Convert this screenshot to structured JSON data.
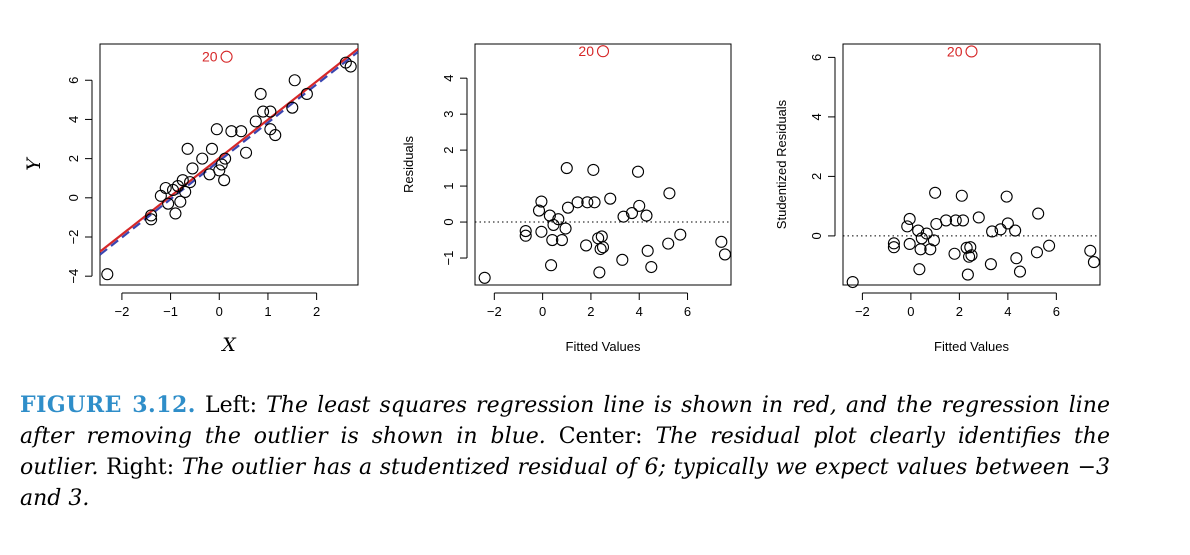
{
  "chart_data": [
    {
      "type": "scatter",
      "xlabel": "X",
      "ylabel": "Y",
      "xlim": [
        -2.45,
        2.85
      ],
      "ylim": [
        -4.45,
        7.85
      ],
      "xticks": [
        -2,
        -1,
        0,
        1,
        2
      ],
      "yticks": [
        -4,
        -2,
        0,
        2,
        4,
        6
      ],
      "xtick_labels": [
        "−2",
        "−1",
        "0",
        "1",
        "2"
      ],
      "ytick_labels": [
        "−4",
        "−2",
        "0",
        "2",
        "4",
        "6"
      ],
      "annotation": {
        "label": "20",
        "x": 0.15,
        "y": 7.2,
        "color": "#d62728"
      },
      "points": [
        [
          -2.3,
          -3.9
        ],
        [
          -1.4,
          -1.1
        ],
        [
          -1.4,
          -0.9
        ],
        [
          -1.2,
          0.1
        ],
        [
          -1.1,
          0.5
        ],
        [
          -1.05,
          -0.3
        ],
        [
          -0.95,
          0.4
        ],
        [
          -0.9,
          -0.8
        ],
        [
          -0.85,
          0.6
        ],
        [
          -0.8,
          -0.2
        ],
        [
          -0.75,
          0.9
        ],
        [
          -0.7,
          0.3
        ],
        [
          -0.65,
          2.5
        ],
        [
          -0.6,
          0.8
        ],
        [
          -0.55,
          1.5
        ],
        [
          -0.35,
          2.0
        ],
        [
          -0.2,
          1.2
        ],
        [
          -0.15,
          2.5
        ],
        [
          -0.05,
          3.5
        ],
        [
          0.0,
          1.4
        ],
        [
          0.05,
          1.7
        ],
        [
          0.1,
          0.9
        ],
        [
          0.12,
          2.0
        ],
        [
          0.25,
          3.4
        ],
        [
          0.45,
          3.4
        ],
        [
          0.55,
          2.3
        ],
        [
          0.75,
          3.9
        ],
        [
          0.85,
          5.3
        ],
        [
          0.9,
          4.4
        ],
        [
          1.05,
          4.4
        ],
        [
          1.05,
          3.5
        ],
        [
          1.15,
          3.2
        ],
        [
          1.5,
          4.6
        ],
        [
          1.55,
          6.0
        ],
        [
          1.8,
          5.3
        ],
        [
          2.6,
          6.9
        ],
        [
          2.7,
          6.7
        ]
      ],
      "lines": [
        {
          "name": "least squares fit",
          "color": "#d62728",
          "style": "solid",
          "x": [
            -2.45,
            2.85
          ],
          "y": [
            -2.75,
            7.6
          ]
        },
        {
          "name": "fit without outlier",
          "color": "#3a45b0",
          "style": "dashed",
          "x": [
            -2.45,
            2.85
          ],
          "y": [
            -2.9,
            7.45
          ]
        }
      ]
    },
    {
      "type": "scatter",
      "xlabel": "Fitted Values",
      "ylabel": "Residuals",
      "xlim": [
        -2.8,
        7.8
      ],
      "ylim": [
        -1.75,
        4.95
      ],
      "xticks": [
        -2,
        0,
        2,
        4,
        6
      ],
      "yticks": [
        -1,
        0,
        1,
        2,
        3,
        4
      ],
      "xtick_labels": [
        "−2",
        "0",
        "2",
        "4",
        "6"
      ],
      "ytick_labels": [
        "−1",
        "0",
        "1",
        "2",
        "3",
        "4"
      ],
      "hline": 0,
      "annotation": {
        "label": "20",
        "x": 2.5,
        "y": 4.75,
        "color": "#d62728"
      },
      "points": [
        [
          -2.4,
          -1.55
        ],
        [
          -0.7,
          -0.25
        ],
        [
          -0.7,
          -0.38
        ],
        [
          -0.15,
          0.32
        ],
        [
          -0.05,
          0.57
        ],
        [
          -0.05,
          -0.27
        ],
        [
          0.3,
          0.18
        ],
        [
          0.35,
          -1.2
        ],
        [
          0.4,
          -0.5
        ],
        [
          0.45,
          -0.08
        ],
        [
          0.65,
          0.08
        ],
        [
          0.8,
          -0.5
        ],
        [
          0.95,
          -0.18
        ],
        [
          1.0,
          1.5
        ],
        [
          1.05,
          0.4
        ],
        [
          1.45,
          0.55
        ],
        [
          1.8,
          -0.65
        ],
        [
          1.85,
          0.55
        ],
        [
          2.1,
          1.45
        ],
        [
          2.15,
          0.55
        ],
        [
          2.3,
          -0.45
        ],
        [
          2.35,
          -1.4
        ],
        [
          2.4,
          -0.75
        ],
        [
          2.45,
          -0.4
        ],
        [
          2.5,
          -0.7
        ],
        [
          2.8,
          0.65
        ],
        [
          3.3,
          -1.05
        ],
        [
          3.35,
          0.15
        ],
        [
          3.7,
          0.25
        ],
        [
          3.95,
          1.4
        ],
        [
          4.0,
          0.45
        ],
        [
          4.3,
          0.18
        ],
        [
          4.35,
          -0.8
        ],
        [
          4.5,
          -1.25
        ],
        [
          5.2,
          -0.6
        ],
        [
          5.25,
          0.8
        ],
        [
          5.7,
          -0.35
        ],
        [
          7.4,
          -0.55
        ],
        [
          7.55,
          -0.9
        ]
      ]
    },
    {
      "type": "scatter",
      "xlabel": "Fitted Values",
      "ylabel": "Studentized Residuals",
      "xlim": [
        -2.8,
        7.8
      ],
      "ylim": [
        -1.65,
        6.45
      ],
      "xticks": [
        -2,
        0,
        2,
        4,
        6
      ],
      "yticks": [
        0,
        2,
        4,
        6
      ],
      "xtick_labels": [
        "−2",
        "0",
        "2",
        "4",
        "6"
      ],
      "ytick_labels": [
        "0",
        "2",
        "4",
        "6"
      ],
      "hline": 0,
      "annotation": {
        "label": "20",
        "x": 2.5,
        "y": 6.2,
        "color": "#d62728"
      },
      "points": [
        [
          -2.4,
          -1.55
        ],
        [
          -0.7,
          -0.25
        ],
        [
          -0.7,
          -0.38
        ],
        [
          -0.15,
          0.32
        ],
        [
          -0.05,
          0.57
        ],
        [
          -0.05,
          -0.27
        ],
        [
          0.3,
          0.18
        ],
        [
          0.35,
          -1.12
        ],
        [
          0.4,
          -0.45
        ],
        [
          0.45,
          -0.08
        ],
        [
          0.65,
          0.08
        ],
        [
          0.8,
          -0.45
        ],
        [
          0.95,
          -0.15
        ],
        [
          1.0,
          1.45
        ],
        [
          1.05,
          0.4
        ],
        [
          1.45,
          0.52
        ],
        [
          1.8,
          -0.6
        ],
        [
          1.85,
          0.52
        ],
        [
          2.1,
          1.35
        ],
        [
          2.15,
          0.52
        ],
        [
          2.3,
          -0.4
        ],
        [
          2.35,
          -1.3
        ],
        [
          2.4,
          -0.7
        ],
        [
          2.45,
          -0.38
        ],
        [
          2.5,
          -0.65
        ],
        [
          2.8,
          0.62
        ],
        [
          3.3,
          -0.95
        ],
        [
          3.35,
          0.15
        ],
        [
          3.7,
          0.22
        ],
        [
          3.95,
          1.32
        ],
        [
          4.0,
          0.42
        ],
        [
          4.3,
          0.18
        ],
        [
          4.35,
          -0.75
        ],
        [
          4.5,
          -1.2
        ],
        [
          5.2,
          -0.55
        ],
        [
          5.25,
          0.75
        ],
        [
          5.7,
          -0.33
        ],
        [
          7.4,
          -0.5
        ],
        [
          7.55,
          -0.88
        ]
      ]
    }
  ],
  "caption": {
    "label": "FIGURE 3.12.",
    "s1": " Left: ",
    "i1": "The least squares regression line is shown in red, and the regression line after removing the outlier is shown in blue.",
    "s2": " Center: ",
    "i2": "The residual plot clearly identifies the outlier.",
    "s3": " Right: ",
    "i3": "The outlier has a studentized residual of 6; typically we expect values between −3 and 3."
  }
}
